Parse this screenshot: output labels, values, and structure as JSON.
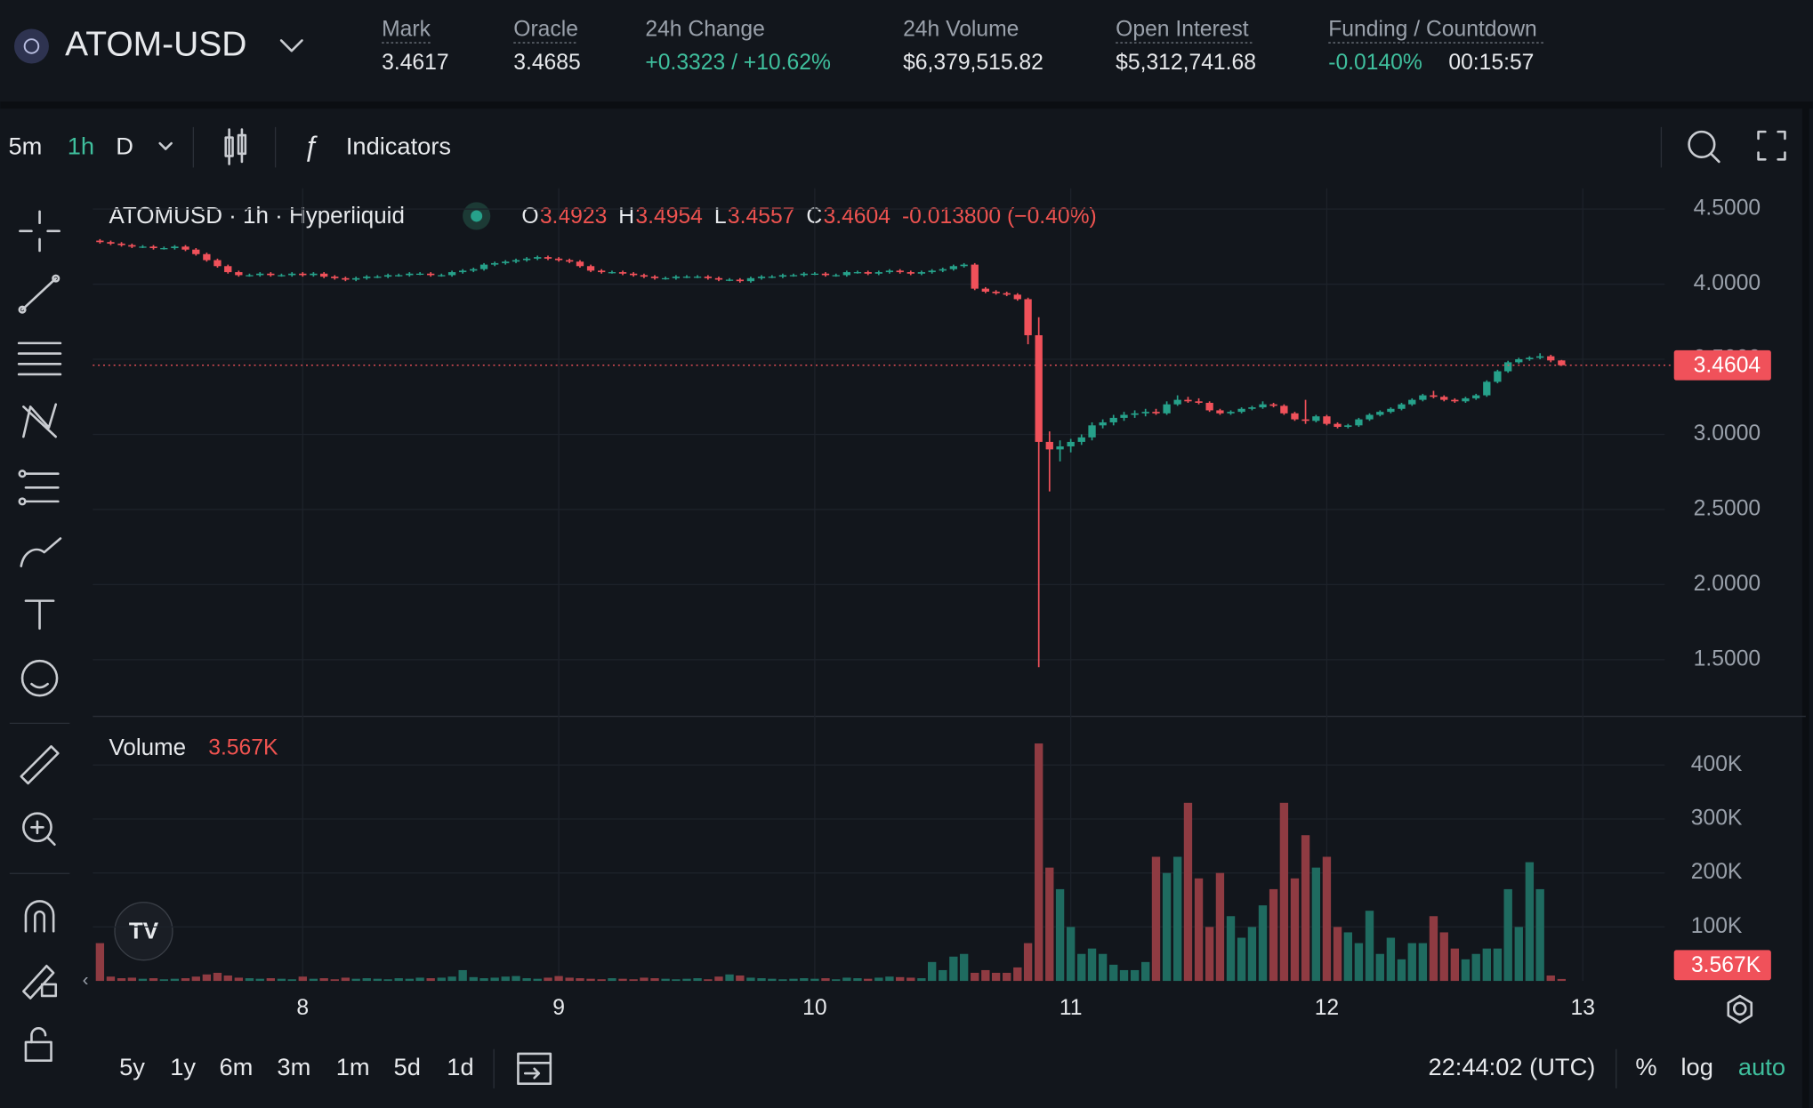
{
  "header": {
    "symbol": "ATOM-USD",
    "stats": [
      {
        "label": "Mark",
        "value": "3.4617"
      },
      {
        "label": "Oracle",
        "value": "3.4685"
      },
      {
        "label": "24h Change",
        "value": "+0.3323 / +10.62%"
      },
      {
        "label": "24h Volume",
        "value": "$6,379,515.82"
      },
      {
        "label": "Open Interest",
        "value": "$5,312,741.68"
      }
    ],
    "funding": {
      "label": "Funding / Countdown",
      "rate": "-0.0140%",
      "countdown": "00:15:57"
    }
  },
  "toolbar": {
    "intervals": [
      "5m",
      "1h",
      "D"
    ],
    "indicators": "Indicators"
  },
  "chart_data": {
    "type": "candlestick",
    "title": "ATOMUSD · 1h · Hyperliquid",
    "ohlc": [
      {
        "label": "O",
        "value": "3.4923"
      },
      {
        "label": "H",
        "value": "3.4954"
      },
      {
        "label": "L",
        "value": "3.4557"
      },
      {
        "label": "C",
        "value": "3.4604"
      }
    ],
    "change": "-0.013800 (−0.40%)",
    "x": [
      7.208,
      7.25,
      7.292,
      7.333,
      7.375,
      7.417,
      7.458,
      7.5,
      7.542,
      7.583,
      7.625,
      7.667,
      7.708,
      7.75,
      7.792,
      7.833,
      7.875,
      7.917,
      7.958,
      8.0,
      8.042,
      8.083,
      8.125,
      8.167,
      8.208,
      8.25,
      8.292,
      8.333,
      8.375,
      8.417,
      8.458,
      8.5,
      8.542,
      8.583,
      8.625,
      8.667,
      8.708,
      8.75,
      8.792,
      8.833,
      8.875,
      8.917,
      8.958,
      9.0,
      9.042,
      9.083,
      9.125,
      9.167,
      9.208,
      9.25,
      9.292,
      9.333,
      9.375,
      9.417,
      9.458,
      9.5,
      9.542,
      9.583,
      9.625,
      9.667,
      9.708,
      9.75,
      9.792,
      9.833,
      9.875,
      9.917,
      9.958,
      10.0,
      10.042,
      10.083,
      10.125,
      10.167,
      10.208,
      10.25,
      10.292,
      10.333,
      10.375,
      10.417,
      10.458,
      10.5,
      10.542,
      10.583,
      10.625,
      10.667,
      10.708,
      10.75,
      10.792,
      10.833,
      10.875,
      10.917,
      10.958,
      11.0,
      11.042,
      11.083,
      11.125,
      11.167,
      11.208,
      11.25,
      11.292,
      11.333,
      11.375,
      11.417,
      11.458,
      11.5,
      11.542,
      11.583,
      11.625,
      11.667,
      11.708,
      11.75,
      11.792,
      11.833,
      11.875,
      11.917,
      11.958,
      12.0,
      12.042,
      12.083,
      12.125,
      12.167,
      12.208,
      12.25,
      12.292,
      12.333,
      12.375,
      12.417,
      12.458,
      12.5,
      12.542,
      12.583,
      12.625,
      12.667,
      12.708,
      12.75,
      12.792,
      12.833,
      12.875,
      12.917
    ],
    "open": [
      4.29,
      4.28,
      4.27,
      4.26,
      4.25,
      4.25,
      4.24,
      4.24,
      4.25,
      4.23,
      4.2,
      4.16,
      4.12,
      4.08,
      4.06,
      4.06,
      4.07,
      4.06,
      4.06,
      4.07,
      4.06,
      4.07,
      4.05,
      4.04,
      4.03,
      4.04,
      4.05,
      4.05,
      4.06,
      4.06,
      4.07,
      4.07,
      4.06,
      4.06,
      4.08,
      4.09,
      4.1,
      4.13,
      4.14,
      4.15,
      4.16,
      4.17,
      4.18,
      4.17,
      4.16,
      4.15,
      4.12,
      4.09,
      4.08,
      4.08,
      4.07,
      4.06,
      4.05,
      4.04,
      4.04,
      4.05,
      4.05,
      4.05,
      4.04,
      4.03,
      4.03,
      4.02,
      4.04,
      4.05,
      4.05,
      4.06,
      4.06,
      4.07,
      4.07,
      4.06,
      4.06,
      4.08,
      4.08,
      4.07,
      4.08,
      4.09,
      4.08,
      4.07,
      4.08,
      4.09,
      4.1,
      4.12,
      4.13,
      3.97,
      3.95,
      3.94,
      3.93,
      3.9,
      3.66,
      2.95,
      2.9,
      2.92,
      2.95,
      2.98,
      3.06,
      3.08,
      3.11,
      3.13,
      3.14,
      3.15,
      3.14,
      3.2,
      3.23,
      3.22,
      3.21,
      3.16,
      3.14,
      3.15,
      3.17,
      3.18,
      3.2,
      3.19,
      3.14,
      3.1,
      3.09,
      3.12,
      3.07,
      3.05,
      3.06,
      3.1,
      3.13,
      3.15,
      3.17,
      3.2,
      3.23,
      3.26,
      3.25,
      3.23,
      3.22,
      3.24,
      3.26,
      3.35,
      3.42,
      3.48,
      3.5,
      3.51,
      3.52,
      3.4923
    ],
    "high": [
      4.3,
      4.29,
      4.28,
      4.27,
      4.26,
      4.26,
      4.25,
      4.26,
      4.26,
      4.24,
      4.21,
      4.17,
      4.13,
      4.09,
      4.07,
      4.08,
      4.08,
      4.07,
      4.08,
      4.08,
      4.08,
      4.08,
      4.06,
      4.05,
      4.05,
      4.06,
      4.06,
      4.07,
      4.07,
      4.08,
      4.08,
      4.08,
      4.07,
      4.09,
      4.1,
      4.11,
      4.14,
      4.15,
      4.16,
      4.17,
      4.18,
      4.19,
      4.19,
      4.18,
      4.17,
      4.16,
      4.13,
      4.1,
      4.09,
      4.09,
      4.08,
      4.07,
      4.06,
      4.05,
      4.06,
      4.06,
      4.06,
      4.06,
      4.05,
      4.04,
      4.04,
      4.05,
      4.06,
      4.06,
      4.07,
      4.07,
      4.08,
      4.08,
      4.08,
      4.07,
      4.09,
      4.09,
      4.09,
      4.09,
      4.1,
      4.1,
      4.09,
      4.09,
      4.1,
      4.11,
      4.13,
      4.14,
      4.14,
      3.98,
      3.96,
      3.95,
      3.94,
      3.91,
      3.78,
      3.02,
      2.96,
      2.97,
      3.0,
      3.08,
      3.1,
      3.13,
      3.15,
      3.16,
      3.17,
      3.17,
      3.22,
      3.26,
      3.25,
      3.24,
      3.22,
      3.17,
      3.16,
      3.18,
      3.19,
      3.22,
      3.21,
      3.2,
      3.15,
      3.23,
      3.13,
      3.13,
      3.08,
      3.07,
      3.11,
      3.14,
      3.16,
      3.18,
      3.21,
      3.24,
      3.27,
      3.29,
      3.26,
      3.24,
      3.25,
      3.27,
      3.36,
      3.43,
      3.49,
      3.51,
      3.52,
      3.54,
      3.53,
      3.4954
    ],
    "low": [
      4.27,
      4.26,
      4.25,
      4.24,
      4.24,
      4.23,
      4.23,
      4.23,
      4.22,
      4.19,
      4.15,
      4.11,
      4.07,
      4.05,
      4.05,
      4.05,
      4.05,
      4.05,
      4.05,
      4.05,
      4.05,
      4.04,
      4.03,
      4.02,
      4.02,
      4.03,
      4.04,
      4.04,
      4.05,
      4.05,
      4.06,
      4.05,
      4.05,
      4.05,
      4.07,
      4.08,
      4.09,
      4.12,
      4.13,
      4.14,
      4.15,
      4.16,
      4.16,
      4.15,
      4.14,
      4.11,
      4.08,
      4.07,
      4.07,
      4.06,
      4.05,
      4.04,
      4.03,
      4.03,
      4.03,
      4.04,
      4.04,
      4.03,
      4.02,
      4.02,
      4.01,
      4.01,
      4.03,
      4.04,
      4.04,
      4.05,
      4.05,
      4.06,
      4.05,
      4.05,
      4.05,
      4.07,
      4.06,
      4.06,
      4.07,
      4.07,
      4.06,
      4.06,
      4.07,
      4.08,
      4.09,
      4.11,
      3.96,
      3.94,
      3.93,
      3.92,
      3.89,
      3.6,
      1.45,
      2.62,
      2.82,
      2.88,
      2.93,
      2.96,
      3.04,
      3.06,
      3.09,
      3.11,
      3.12,
      3.13,
      3.13,
      3.19,
      3.21,
      3.2,
      3.15,
      3.13,
      3.13,
      3.14,
      3.16,
      3.17,
      3.18,
      3.13,
      3.09,
      3.07,
      3.08,
      3.06,
      3.04,
      3.04,
      3.05,
      3.09,
      3.12,
      3.14,
      3.16,
      3.19,
      3.22,
      3.24,
      3.22,
      3.21,
      3.21,
      3.23,
      3.25,
      3.34,
      3.41,
      3.47,
      3.49,
      3.5,
      3.48,
      3.4557
    ],
    "close": [
      4.28,
      4.27,
      4.26,
      4.25,
      4.25,
      4.24,
      4.24,
      4.25,
      4.23,
      4.2,
      4.16,
      4.12,
      4.08,
      4.06,
      4.06,
      4.07,
      4.06,
      4.06,
      4.07,
      4.06,
      4.07,
      4.05,
      4.04,
      4.03,
      4.04,
      4.05,
      4.05,
      4.06,
      4.06,
      4.07,
      4.07,
      4.06,
      4.06,
      4.08,
      4.09,
      4.1,
      4.13,
      4.14,
      4.15,
      4.16,
      4.17,
      4.18,
      4.17,
      4.16,
      4.15,
      4.12,
      4.09,
      4.08,
      4.08,
      4.07,
      4.06,
      4.05,
      4.04,
      4.04,
      4.05,
      4.05,
      4.05,
      4.04,
      4.03,
      4.03,
      4.02,
      4.04,
      4.05,
      4.05,
      4.06,
      4.06,
      4.07,
      4.07,
      4.06,
      4.06,
      4.08,
      4.08,
      4.07,
      4.08,
      4.09,
      4.08,
      4.07,
      4.08,
      4.09,
      4.1,
      4.12,
      4.13,
      3.97,
      3.95,
      3.94,
      3.93,
      3.9,
      3.66,
      2.95,
      2.9,
      2.92,
      2.95,
      2.98,
      3.06,
      3.08,
      3.11,
      3.13,
      3.14,
      3.15,
      3.14,
      3.2,
      3.23,
      3.22,
      3.21,
      3.16,
      3.14,
      3.15,
      3.17,
      3.18,
      3.2,
      3.19,
      3.14,
      3.1,
      3.09,
      3.12,
      3.07,
      3.05,
      3.06,
      3.1,
      3.13,
      3.15,
      3.17,
      3.2,
      3.23,
      3.26,
      3.25,
      3.23,
      3.22,
      3.24,
      3.26,
      3.35,
      3.42,
      3.48,
      3.5,
      3.51,
      3.52,
      3.4923,
      3.4604
    ],
    "up_color": "#26a18a",
    "down_color": "#f0515a",
    "xlim": [
      7.18,
      13.32
    ],
    "xticks": [
      8,
      9,
      10,
      11,
      12,
      13
    ],
    "ylim": [
      1.123,
      4.638
    ],
    "yticks": [
      {
        "value": 1.5,
        "label": "1.5000"
      },
      {
        "value": 2,
        "label": "2.0000"
      },
      {
        "value": 2.5,
        "label": "2.5000"
      },
      {
        "value": 3,
        "label": "3.0000"
      },
      {
        "value": 3.5,
        "label": "3.5000"
      },
      {
        "value": 4,
        "label": "4.0000"
      },
      {
        "value": 4.5,
        "label": "4.5000"
      }
    ],
    "grid": true,
    "last_price": 3.4604,
    "volume": {
      "title": "Volume",
      "values": [
        70000,
        8000,
        5000,
        6000,
        4000,
        5000,
        3000,
        4000,
        5000,
        8000,
        12000,
        15000,
        10000,
        6000,
        5000,
        4000,
        5000,
        4000,
        3000,
        8000,
        4000,
        5000,
        3000,
        6000,
        4000,
        5000,
        4000,
        3000,
        5000,
        4000,
        6000,
        5000,
        6000,
        8000,
        20000,
        7000,
        5000,
        6000,
        8000,
        9000,
        5000,
        4000,
        6000,
        9000,
        6000,
        5000,
        4000,
        3000,
        5000,
        4000,
        3000,
        6000,
        5000,
        4000,
        3000,
        4000,
        5000,
        3000,
        8000,
        12000,
        10000,
        6000,
        5000,
        4000,
        3000,
        4000,
        5000,
        4000,
        5000,
        3000,
        6000,
        5000,
        4000,
        6000,
        8000,
        7000,
        6000,
        5000,
        35000,
        20000,
        45000,
        50000,
        15000,
        20000,
        15000,
        15000,
        25000,
        70000,
        440000,
        210000,
        170000,
        100000,
        50000,
        60000,
        50000,
        30000,
        20000,
        20000,
        35000,
        230000,
        200000,
        230000,
        330000,
        190000,
        100000,
        200000,
        120000,
        80000,
        100000,
        140000,
        170000,
        330000,
        190000,
        270000,
        210000,
        230000,
        100000,
        90000,
        70000,
        130000,
        50000,
        80000,
        40000,
        70000,
        70000,
        120000,
        90000,
        60000,
        40000,
        50000,
        60000,
        60000,
        170000,
        100000,
        220000,
        170000,
        10000,
        3567
      ],
      "up_color": "#1f6b60",
      "down_color": "#8f3b42",
      "ylim": [
        0,
        486000
      ],
      "yticks": [
        {
          "value": 100000,
          "label": "100K"
        },
        {
          "value": 200000,
          "label": "200K"
        },
        {
          "value": 300000,
          "label": "300K"
        },
        {
          "value": 400000,
          "label": "400K"
        }
      ],
      "last": {
        "value": 3567,
        "label": "3.567K"
      }
    }
  },
  "footer": {
    "ranges": [
      "5y",
      "1y",
      "6m",
      "3m",
      "1m",
      "5d",
      "1d"
    ],
    "time": "22:44:02 (UTC)",
    "percent": "%",
    "log": "log",
    "auto": "auto"
  }
}
